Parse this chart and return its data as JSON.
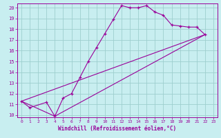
{
  "xlabel": "Windchill (Refroidissement éolien,°C)",
  "xlim": [
    -0.5,
    23.5
  ],
  "ylim": [
    9.8,
    20.4
  ],
  "xtick_labels": [
    "0",
    "1",
    "2",
    "3",
    "4",
    "5",
    "6",
    "7",
    "8",
    "9",
    "10",
    "11",
    "12",
    "13",
    "14",
    "15",
    "16",
    "17",
    "18",
    "19",
    "20",
    "21",
    "22",
    "23"
  ],
  "ytick_labels": [
    "10",
    "11",
    "12",
    "13",
    "14",
    "15",
    "16",
    "17",
    "18",
    "19",
    "20"
  ],
  "bg_color": "#c8eef0",
  "line_color": "#990099",
  "grid_color": "#9ecece",
  "series_main": [
    [
      0,
      11.3
    ],
    [
      1,
      10.7
    ],
    [
      3,
      11.2
    ],
    [
      4,
      9.9
    ],
    [
      5,
      11.6
    ],
    [
      6,
      12.0
    ],
    [
      7,
      13.5
    ],
    [
      8,
      15.0
    ],
    [
      9,
      16.3
    ],
    [
      10,
      17.6
    ],
    [
      11,
      18.9
    ],
    [
      12,
      20.2
    ],
    [
      13,
      20.0
    ],
    [
      14,
      20.0
    ],
    [
      15,
      20.2
    ],
    [
      16,
      19.6
    ],
    [
      17,
      19.3
    ],
    [
      18,
      18.4
    ],
    [
      19,
      18.3
    ],
    [
      20,
      18.2
    ],
    [
      21,
      18.2
    ],
    [
      22,
      17.5
    ]
  ],
  "series_straight1": [
    [
      0,
      11.3
    ],
    [
      22,
      17.5
    ]
  ],
  "series_straight2": [
    [
      0,
      11.3
    ],
    [
      4,
      9.9
    ],
    [
      22,
      17.5
    ]
  ]
}
